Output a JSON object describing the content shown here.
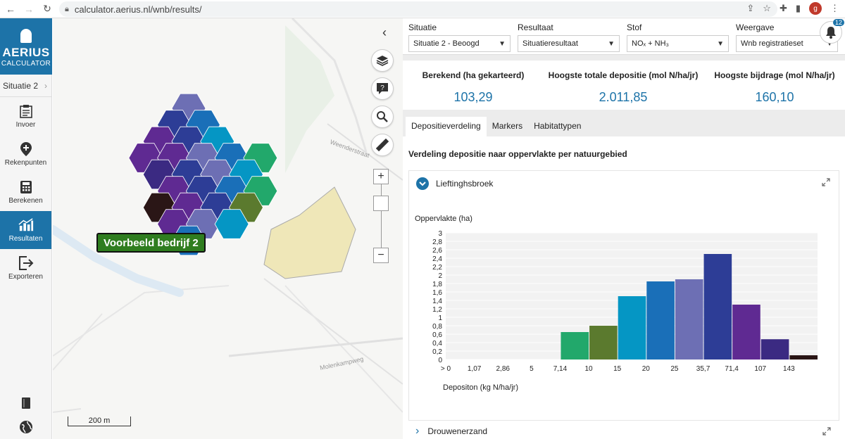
{
  "browser": {
    "url": "calculator.aerius.nl/wnb/results/",
    "avatar_letter": "g"
  },
  "app": {
    "logo_title": "AERIUS",
    "logo_subtitle": "CALCULATOR",
    "situation": "Situatie 2"
  },
  "sidebar": {
    "items": [
      {
        "label": "Invoer",
        "icon": "clipboard-icon"
      },
      {
        "label": "Rekenpunten",
        "icon": "map-pin-icon"
      },
      {
        "label": "Berekenen",
        "icon": "calculator-icon"
      },
      {
        "label": "Resultaten",
        "icon": "results-chart-icon"
      },
      {
        "label": "Exporteren",
        "icon": "export-icon"
      }
    ]
  },
  "map": {
    "source_label": "Voorbeeld bedrijf 2",
    "scale_label": "200 m",
    "streets": [
      "Weenderstraat",
      "Molenkampweg"
    ]
  },
  "selects": {
    "situatie": {
      "label": "Situatie",
      "value": "Situatie 2 - Beoogd"
    },
    "resultaat": {
      "label": "Resultaat",
      "value": "Situatieresultaat"
    },
    "stof": {
      "label": "Stof",
      "value": "NOₓ + NH₃"
    },
    "weergave": {
      "label": "Weergave",
      "value": "Wnb registratieset"
    }
  },
  "notifications": {
    "count": "12"
  },
  "stats": [
    {
      "label": "Berekend (ha gekarteerd)",
      "value": "103,29"
    },
    {
      "label": "Hoogste totale depositie (mol N/ha/jr)",
      "value": "2.011,85"
    },
    {
      "label": "Hoogste bijdrage (mol N/ha/jr)",
      "value": "160,10"
    }
  ],
  "tabs": [
    "Depositieverdeling",
    "Markers",
    "Habitattypen"
  ],
  "content": {
    "title": "Verdeling depositie naar oppervlakte per natuurgebied",
    "area1": "Lieftinghsbroek",
    "area2": "Drouwenerzand"
  },
  "chart_data": {
    "type": "bar",
    "ylabel": "Oppervlakte (ha)",
    "xlabel": "Depositon (kg N/ha/jr)",
    "ylim": [
      0,
      3
    ],
    "yticks": [
      "0",
      "0,2",
      "0,4",
      "0,6",
      "0,8",
      "1",
      "1,2",
      "1,4",
      "1,6",
      "1,8",
      "2",
      "2,2",
      "2,4",
      "2,6",
      "2,8",
      "3"
    ],
    "categories": [
      "> 0",
      "1,07",
      "2,86",
      "5",
      "7,14",
      "10",
      "15",
      "20",
      "25",
      "35,7",
      "71,4",
      "107",
      "143"
    ],
    "values": [
      0,
      0,
      0,
      0,
      0.65,
      0.8,
      1.5,
      1.85,
      1.9,
      2.5,
      1.3,
      0.48,
      0.1
    ],
    "colors": [
      "#ffffff",
      "#ffffff",
      "#ffffff",
      "#ffffff",
      "#22a86b",
      "#5b7a2e",
      "#0596c4",
      "#1a6fb8",
      "#6d6fb4",
      "#2d3d96",
      "#5f2a92",
      "#3b2a82",
      "#2a1616"
    ]
  }
}
